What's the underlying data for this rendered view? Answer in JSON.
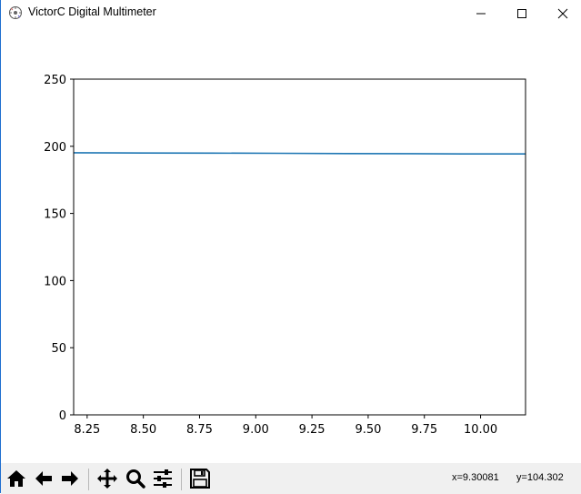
{
  "window": {
    "title": "VictorC Digital Multimeter",
    "controls": [
      "minimize",
      "maximize",
      "close"
    ]
  },
  "toolbar": {
    "buttons": [
      {
        "name": "home",
        "icon": "home-icon"
      },
      {
        "name": "back",
        "icon": "arrow-left-icon"
      },
      {
        "name": "forward",
        "icon": "arrow-right-icon"
      },
      {
        "name": "pan",
        "icon": "move-icon"
      },
      {
        "name": "zoom",
        "icon": "magnifier-icon"
      },
      {
        "name": "configure-subplots",
        "icon": "sliders-icon"
      },
      {
        "name": "save",
        "icon": "floppy-disk-icon"
      }
    ],
    "coord_x": "x=9.30081",
    "coord_y": "y=104.302"
  },
  "chart_data": {
    "type": "line",
    "xlim": [
      8.19,
      10.2
    ],
    "ylim": [
      0,
      250
    ],
    "xticks": [
      8.25,
      8.5,
      8.75,
      9.0,
      9.25,
      9.5,
      9.75,
      10.0
    ],
    "xtick_labels": [
      "8.25",
      "8.50",
      "8.75",
      "9.00",
      "9.25",
      "9.50",
      "9.75",
      "10.00"
    ],
    "yticks": [
      0,
      50,
      100,
      150,
      200,
      250
    ],
    "ytick_labels": [
      "0",
      "50",
      "100",
      "150",
      "200",
      "250"
    ],
    "grid": false,
    "line_color": "#1f77b4",
    "series": [
      {
        "x": [
          8.19,
          8.5,
          8.8,
          9.1,
          9.4,
          9.7,
          9.95,
          10.2
        ],
        "values": [
          195.2,
          195.0,
          194.9,
          194.8,
          194.6,
          194.5,
          194.3,
          194.3
        ]
      }
    ]
  }
}
